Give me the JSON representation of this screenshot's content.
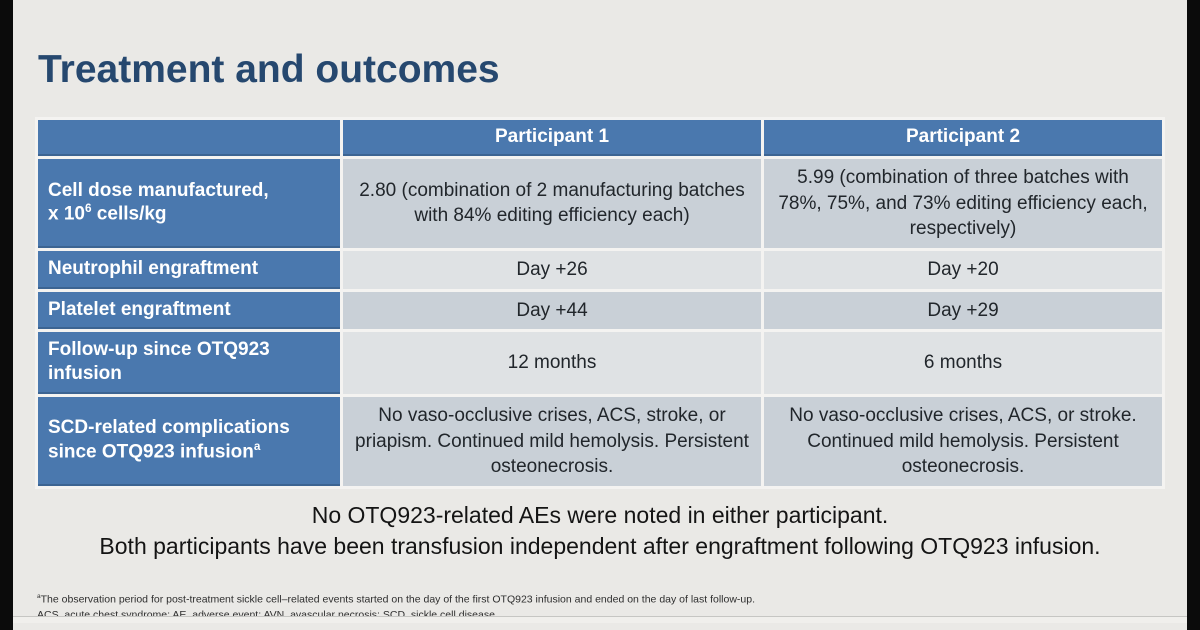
{
  "title": "Treatment and outcomes",
  "table": {
    "col_headers": {
      "label": "",
      "participant1": "Participant 1",
      "participant2": "Participant 2"
    },
    "rows": [
      {
        "label_line1": "Cell dose manufactured,",
        "label_line2_pre": "x 10",
        "label_sup": "6",
        "label_line2_post": " cells/kg",
        "p1": "2.80 (combination of 2 manufacturing batches with 84% editing efficiency each)",
        "p2": "5.99 (combination of three batches with 78%, 75%, and 73% editing efficiency each, respectively)"
      },
      {
        "label": "Neutrophil engraftment",
        "p1": "Day +26",
        "p2": "Day +20"
      },
      {
        "label": "Platelet engraftment",
        "p1": "Day +44",
        "p2": "Day +29"
      },
      {
        "label": "Follow-up since OTQ923 infusion",
        "p1": "12 months",
        "p2": "6 months"
      },
      {
        "label": "SCD-related complications since OTQ923 infusion",
        "label_sup": "a",
        "p1": "No vaso-occlusive crises, ACS, stroke, or priapism. Continued mild hemolysis. Persistent osteonecrosis.",
        "p2": "No vaso-occlusive crises, ACS, or stroke. Continued mild hemolysis. Persistent osteonecrosis."
      }
    ]
  },
  "summary": {
    "line1": "No OTQ923-related AEs were noted in either participant.",
    "line2": "Both participants have been transfusion independent after engraftment following OTQ923 infusion."
  },
  "footnotes": {
    "marker": "a",
    "line1": "The observation period for post-treatment sickle cell–related events started on the day of the first OTQ923 infusion and ended on the day of last follow-up.",
    "line2": "ACS, acute chest syndrome; AE, adverse event; AVN, avascular necrosis; SCD, sickle cell disease"
  },
  "colors": {
    "accent_blue": "#4a78ae",
    "title_navy": "#26486f",
    "row_dark": "#c9d0d7",
    "row_light": "#dfe2e4",
    "slide_background": "#eae9e6"
  }
}
